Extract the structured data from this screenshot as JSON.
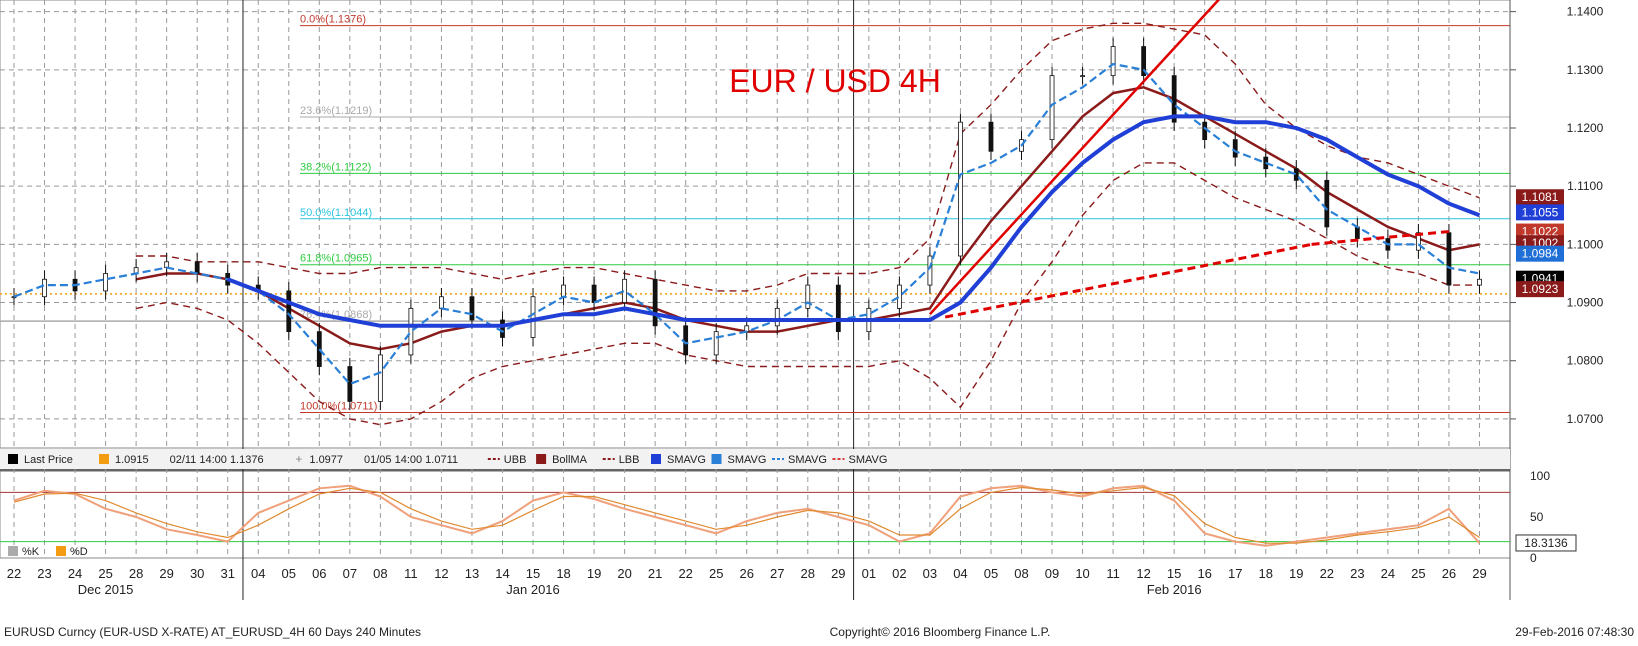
{
  "chart_data": [
    {
      "type": "line",
      "title": "EUR / USD 4H",
      "ylim": [
        1.065,
        1.142
      ],
      "y_ticks": [
        1.07,
        1.08,
        1.09,
        1.1,
        1.11,
        1.12,
        1.13,
        1.14
      ],
      "y_tick_labels": [
        "1.0700",
        "1.0800",
        "1.0900",
        "1.1000",
        "1.1100",
        "1.1200",
        "1.1300",
        "1.1400"
      ],
      "x_tick_labels": [
        "22",
        "23",
        "24",
        "25",
        "28",
        "29",
        "30",
        "31",
        "04",
        "05",
        "06",
        "07",
        "08",
        "11",
        "12",
        "13",
        "14",
        "15",
        "18",
        "19",
        "20",
        "21",
        "22",
        "25",
        "26",
        "27",
        "28",
        "29",
        "01",
        "02",
        "03",
        "04",
        "05",
        "08",
        "09",
        "10",
        "11",
        "12",
        "15",
        "16",
        "17",
        "18",
        "19",
        "22",
        "23",
        "24",
        "25",
        "26",
        "29"
      ],
      "month_labels": [
        {
          "label": "Dec 2015",
          "at_tick": 3
        },
        {
          "label": "Jan 2016",
          "at_tick": 17
        },
        {
          "label": "Feb 2016",
          "at_tick": 38
        }
      ],
      "year_separators_after_tick": [
        7,
        27
      ],
      "fibonacci_levels": [
        {
          "label": "0.0%(1.1376)",
          "value": 1.1376,
          "color": "#c0392b"
        },
        {
          "label": "23.6%(1.1219)",
          "value": 1.1219,
          "color": "#aaaaaa"
        },
        {
          "label": "38.2%(1.1122)",
          "value": 1.1122,
          "color": "#2ecc40"
        },
        {
          "label": "50.0%(1.1044)",
          "value": 1.1044,
          "color": "#2bc4e0"
        },
        {
          "label": "61.8%(1.0965)",
          "value": 1.0965,
          "color": "#2ecc40"
        },
        {
          "label": "76.4%(1.0868)",
          "value": 1.0868,
          "color": "#aaaaaa"
        },
        {
          "label": "100.0%(1.0711)",
          "value": 1.0711,
          "color": "#c0392b"
        }
      ],
      "price_series": {
        "name": "Last Price",
        "x": [
          0,
          1,
          2,
          3,
          4,
          5,
          6,
          7,
          8,
          9,
          10,
          11,
          12,
          13,
          14,
          15,
          16,
          17,
          18,
          19,
          20,
          21,
          22,
          23,
          24,
          25,
          26,
          27,
          28,
          29,
          30,
          31,
          32,
          33,
          34,
          35,
          36,
          37,
          38,
          39,
          40,
          41,
          42,
          43,
          44,
          45,
          46,
          47,
          48
        ],
        "values": [
          1.091,
          1.094,
          1.092,
          1.095,
          1.096,
          1.097,
          1.095,
          1.093,
          1.092,
          1.085,
          1.079,
          1.073,
          1.081,
          1.089,
          1.091,
          1.087,
          1.084,
          1.091,
          1.093,
          1.09,
          1.094,
          1.086,
          1.081,
          1.085,
          1.086,
          1.089,
          1.093,
          1.085,
          1.089,
          1.093,
          1.098,
          1.121,
          1.116,
          1.118,
          1.129,
          1.129,
          1.134,
          1.129,
          1.121,
          1.118,
          1.115,
          1.113,
          1.111,
          1.103,
          1.101,
          1.099,
          1.102,
          1.093,
          1.094
        ]
      },
      "smavg_fast": [
        1.091,
        1.093,
        1.093,
        1.094,
        1.095,
        1.096,
        1.095,
        1.094,
        1.092,
        1.088,
        1.082,
        1.076,
        1.078,
        1.085,
        1.089,
        1.088,
        1.085,
        1.088,
        1.091,
        1.09,
        1.092,
        1.088,
        1.083,
        1.084,
        1.085,
        1.087,
        1.09,
        1.087,
        1.088,
        1.091,
        1.096,
        1.112,
        1.114,
        1.117,
        1.124,
        1.127,
        1.131,
        1.13,
        1.124,
        1.12,
        1.116,
        1.114,
        1.112,
        1.106,
        1.103,
        1.1,
        1.1,
        1.096,
        1.095
      ],
      "bollma": [
        null,
        null,
        null,
        null,
        1.094,
        1.095,
        1.095,
        1.094,
        1.092,
        1.089,
        1.086,
        1.083,
        1.082,
        1.083,
        1.085,
        1.086,
        1.086,
        1.087,
        1.088,
        1.089,
        1.09,
        1.089,
        1.087,
        1.086,
        1.085,
        1.085,
        1.086,
        1.087,
        1.087,
        1.088,
        1.089,
        1.097,
        1.104,
        1.11,
        1.116,
        1.122,
        1.126,
        1.127,
        1.125,
        1.122,
        1.119,
        1.116,
        1.113,
        1.109,
        1.106,
        1.103,
        1.101,
        1.099,
        1.1
      ],
      "bollinger_upper": [
        null,
        null,
        null,
        null,
        1.098,
        1.098,
        1.097,
        1.097,
        1.097,
        1.096,
        1.095,
        1.095,
        1.096,
        1.096,
        1.096,
        1.095,
        1.094,
        1.095,
        1.096,
        1.096,
        1.095,
        1.094,
        1.093,
        1.092,
        1.092,
        1.093,
        1.095,
        1.095,
        1.095,
        1.096,
        1.101,
        1.119,
        1.124,
        1.13,
        1.135,
        1.137,
        1.138,
        1.138,
        1.137,
        1.136,
        1.131,
        1.124,
        1.12,
        1.117,
        1.115,
        1.114,
        1.112,
        1.11,
        1.108
      ],
      "bollinger_lower": [
        null,
        null,
        null,
        null,
        1.089,
        1.09,
        1.089,
        1.087,
        1.083,
        1.078,
        1.073,
        1.07,
        1.069,
        1.07,
        1.073,
        1.077,
        1.079,
        1.08,
        1.081,
        1.082,
        1.083,
        1.083,
        1.081,
        1.08,
        1.079,
        1.079,
        1.079,
        1.079,
        1.079,
        1.08,
        1.077,
        1.072,
        1.08,
        1.09,
        1.097,
        1.105,
        1.111,
        1.114,
        1.114,
        1.111,
        1.108,
        1.106,
        1.104,
        1.101,
        1.098,
        1.096,
        1.095,
        1.093,
        1.093
      ],
      "smavg_slow": [
        null,
        null,
        null,
        null,
        null,
        null,
        null,
        1.094,
        1.092,
        1.09,
        1.088,
        1.087,
        1.086,
        1.086,
        1.086,
        1.086,
        1.086,
        1.087,
        1.088,
        1.088,
        1.089,
        1.088,
        1.087,
        1.087,
        1.087,
        1.087,
        1.087,
        1.087,
        1.087,
        1.087,
        1.087,
        1.09,
        1.096,
        1.103,
        1.109,
        1.114,
        1.118,
        1.121,
        1.122,
        1.122,
        1.121,
        1.121,
        1.12,
        1.118,
        1.115,
        1.112,
        1.11,
        1.107,
        1.105
      ],
      "trendline_solid": {
        "x": [
          30,
          40.5
        ],
        "values": [
          1.088,
          1.148
        ]
      },
      "trendline_dashed": [
        {
          "x": [
            30.5,
            42.5
          ],
          "values": [
            1.0875,
            1.1
          ],
          "extend": false
        },
        {
          "x": [
            42.5,
            47
          ],
          "values": [
            1.1,
            1.1022
          ],
          "extend": false
        }
      ],
      "reference_lines": [
        {
          "value": 1.0915,
          "color": "#f39c12",
          "style": "dotted"
        },
        {
          "value": 1.0868,
          "color": "#aaaaaa",
          "style": "solid"
        }
      ],
      "price_tags": [
        {
          "label": "1.1081",
          "value": 1.1081,
          "color": "#8b1a1a"
        },
        {
          "label": "1.1055",
          "value": 1.1055,
          "color": "#1f3fd6"
        },
        {
          "label": "1.1022",
          "value": 1.1022,
          "color": "#c0392b"
        },
        {
          "label": "1.1002",
          "value": 1.1002,
          "color": "#8b1a1a"
        },
        {
          "label": "1.0984",
          "value": 1.0984,
          "color": "#1f6fd6"
        },
        {
          "label": "1.0941",
          "value": 1.0941,
          "color": "#000000"
        },
        {
          "label": "1.0923",
          "value": 1.0923,
          "color": "#8b1a1a"
        }
      ]
    },
    {
      "type": "line",
      "title": "",
      "ylim": [
        0,
        100
      ],
      "y_ticks": [
        0,
        50,
        100
      ],
      "y_tick_labels": [
        "0",
        "50",
        "100"
      ],
      "guide_levels": [
        80,
        20
      ],
      "series": [
        {
          "name": "%K",
          "values": [
            70,
            82,
            78,
            60,
            50,
            35,
            28,
            20,
            55,
            70,
            85,
            88,
            75,
            50,
            40,
            30,
            45,
            70,
            80,
            72,
            60,
            50,
            40,
            30,
            45,
            55,
            60,
            50,
            40,
            20,
            30,
            75,
            85,
            88,
            80,
            75,
            85,
            88,
            70,
            30,
            20,
            15,
            20,
            25,
            30,
            35,
            40,
            60,
            18
          ]
        },
        {
          "name": "%D",
          "values": [
            68,
            78,
            79,
            70,
            55,
            42,
            32,
            25,
            40,
            60,
            78,
            85,
            80,
            60,
            45,
            35,
            40,
            58,
            75,
            75,
            65,
            55,
            45,
            35,
            40,
            50,
            58,
            55,
            45,
            28,
            28,
            60,
            80,
            86,
            83,
            78,
            82,
            86,
            76,
            42,
            25,
            18,
            18,
            22,
            28,
            32,
            37,
            50,
            25
          ]
        }
      ],
      "price_tag": {
        "label": "18.3136",
        "value": 18.3136
      }
    }
  ],
  "legend": [
    {
      "icon": "square",
      "color": "#000000",
      "label": "Last Price"
    },
    {
      "icon": "square",
      "color": "#f39c12",
      "label": "1.0915"
    },
    {
      "icon": "none",
      "color": "#888888",
      "label": "02/11 14:00 1.1376"
    },
    {
      "icon": "plus",
      "color": "#888888",
      "label": "1.0977"
    },
    {
      "icon": "none",
      "color": "#888888",
      "label": "01/05 14:00 1.0711"
    },
    {
      "icon": "dashed",
      "color": "#8b1a1a",
      "label": "UBB"
    },
    {
      "icon": "square",
      "color": "#8b1a1a",
      "label": "BollMA"
    },
    {
      "icon": "dashed",
      "color": "#8b1a1a",
      "label": "LBB"
    },
    {
      "icon": "square",
      "color": "#1f3fd6",
      "label": "SMAVG"
    },
    {
      "icon": "square",
      "color": "#2a7fd6",
      "label": "SMAVG"
    },
    {
      "icon": "dashed",
      "color": "#2a7fd6",
      "label": "SMAVG"
    },
    {
      "icon": "dashed",
      "color": "#d63a3a",
      "label": "SMAVG"
    }
  ],
  "sub_legend": [
    {
      "color": "#aaaaaa",
      "label": "%K"
    },
    {
      "color": "#f39c12",
      "label": "%D"
    }
  ],
  "footer": {
    "left": "EURUSD Curncy (EUR-USD X-RATE) AT_EURUSD_4H 60 Days 240 Minutes",
    "center": "Copyright© 2016 Bloomberg Finance L.P.",
    "right": "29-Feb-2016 07:48:30"
  },
  "colors": {
    "title": "#e00000",
    "bb": "#8b1a1a",
    "sma_slow": "#1f3fd6",
    "sma_fast": "#2a7fd6",
    "trend": "#e00000",
    "grid": "#999999"
  }
}
